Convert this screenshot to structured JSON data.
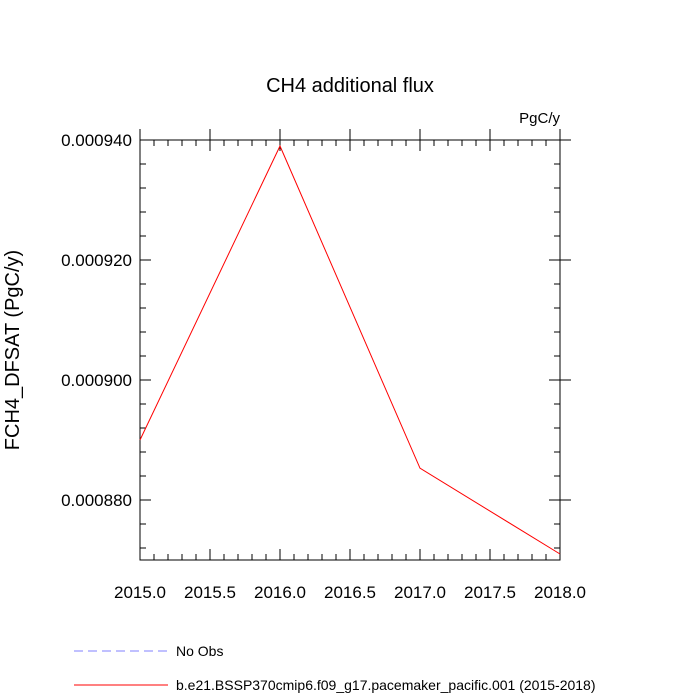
{
  "chart_data": {
    "type": "line",
    "title": "CH4 additional flux",
    "units": "PgC/y",
    "ylabel": "FCH4_DFSAT  (PgC/y)",
    "xlabel": "",
    "xlim": [
      2015.0,
      2018.0
    ],
    "ylim": [
      0.00087,
      0.00094
    ],
    "xticks": [
      2015.0,
      2015.5,
      2016.0,
      2016.5,
      2017.0,
      2017.5,
      2018.0
    ],
    "xtick_labels": [
      "2015.0",
      "2015.5",
      "2016.0",
      "2016.5",
      "2017.0",
      "2017.5",
      "2018.0"
    ],
    "yticks": [
      0.00088,
      0.0009,
      0.00092,
      0.00094
    ],
    "ytick_labels": [
      "0.000880",
      "0.000900",
      "0.000920",
      "0.000940"
    ],
    "grid": false,
    "legend_position": "bottom",
    "series": [
      {
        "name": "b.e21.BSSP370cmip6.f09_g17.pacemaker_pacific.001 (2015-2018)",
        "color": "#ff0000",
        "dash": "solid",
        "x": [
          2015.0,
          2016.0,
          2017.0,
          2018.0
        ],
        "y": [
          0.00089,
          0.000939,
          0.0008853,
          0.000871
        ]
      }
    ],
    "legend": [
      {
        "label": "No Obs",
        "color": "#8080ff",
        "dash": "dashed"
      },
      {
        "label": "b.e21.BSSP370cmip6.f09_g17.pacemaker_pacific.001 (2015-2018)",
        "color": "#ff0000",
        "dash": "solid"
      }
    ]
  }
}
